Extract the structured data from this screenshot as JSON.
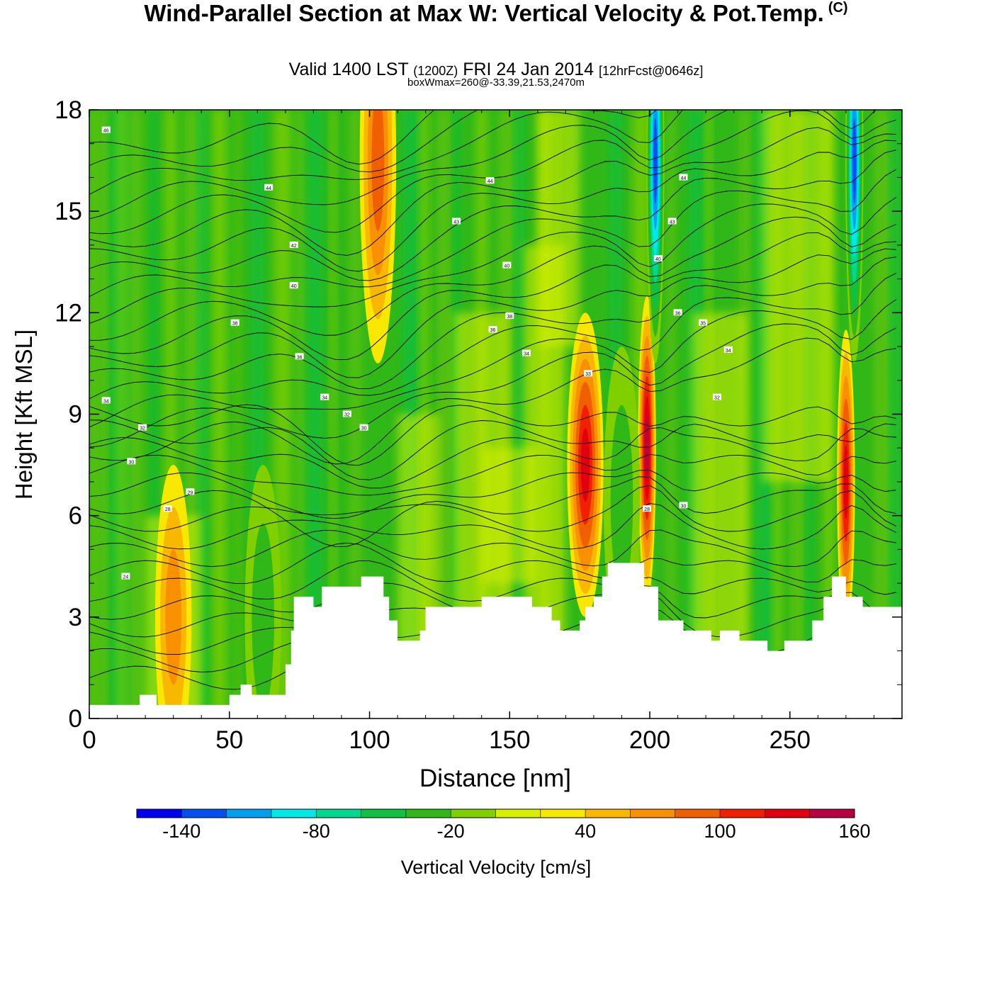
{
  "title": {
    "main": "Wind-Parallel Section at Max W: Vertical Velocity & Pot.Temp.",
    "mark": "(C)",
    "valid": "Valid 1400 LST",
    "zulu": "(1200Z)",
    "date": "FRI 24 Jan 2014",
    "fcst": "[12hrFcst@0646z]",
    "box": "boxWmax=260@-33.39,21.53,2470m"
  },
  "chart_data": {
    "type": "heatmap",
    "xlabel": "Distance [nm]",
    "ylabel": "Height [Kft MSL]",
    "xlim": [
      0,
      290
    ],
    "ylim": [
      0,
      18
    ],
    "xticks": [
      "0",
      "50",
      "100",
      "150",
      "200",
      "250"
    ],
    "yticks": [
      "0",
      "3",
      "6",
      "9",
      "12",
      "15",
      "18"
    ],
    "colorbar": {
      "label": "Vertical Velocity [cm/s]",
      "tick_labels": [
        "-140",
        "-80",
        "-20",
        "40",
        "100",
        "160"
      ],
      "colors": [
        "#0000f0",
        "#0050f0",
        "#00a0f0",
        "#00e8e8",
        "#00d890",
        "#10c040",
        "#30b818",
        "#80d000",
        "#d8f000",
        "#f8e800",
        "#f8b800",
        "#f89000",
        "#f06000",
        "#f02000",
        "#e00010",
        "#b80040"
      ]
    },
    "terrain_profile": [
      [
        0,
        0.4
      ],
      [
        18,
        0.4
      ],
      [
        18,
        0.7
      ],
      [
        24,
        0.7
      ],
      [
        24,
        0.4
      ],
      [
        50,
        0.4
      ],
      [
        50,
        0.7
      ],
      [
        54,
        0.7
      ],
      [
        54,
        1.0
      ],
      [
        58,
        1.0
      ],
      [
        58,
        0.7
      ],
      [
        70,
        0.7
      ],
      [
        70,
        1.6
      ],
      [
        72,
        1.6
      ],
      [
        72,
        2.6
      ],
      [
        73,
        2.6
      ],
      [
        73,
        3.6
      ],
      [
        80,
        3.6
      ],
      [
        80,
        3.3
      ],
      [
        83,
        3.3
      ],
      [
        83,
        3.9
      ],
      [
        97,
        3.9
      ],
      [
        97,
        4.2
      ],
      [
        105,
        4.2
      ],
      [
        105,
        3.6
      ],
      [
        107,
        3.6
      ],
      [
        107,
        2.9
      ],
      [
        110,
        2.9
      ],
      [
        110,
        2.3
      ],
      [
        118,
        2.3
      ],
      [
        118,
        2.6
      ],
      [
        120,
        2.6
      ],
      [
        120,
        3.3
      ],
      [
        140,
        3.3
      ],
      [
        140,
        3.6
      ],
      [
        158,
        3.6
      ],
      [
        158,
        3.3
      ],
      [
        165,
        3.3
      ],
      [
        165,
        2.9
      ],
      [
        168,
        2.9
      ],
      [
        168,
        2.6
      ],
      [
        175,
        2.6
      ],
      [
        175,
        2.9
      ],
      [
        177,
        2.9
      ],
      [
        177,
        3.3
      ],
      [
        180,
        3.3
      ],
      [
        180,
        3.6
      ],
      [
        183,
        3.6
      ],
      [
        183,
        4.2
      ],
      [
        185,
        4.2
      ],
      [
        185,
        4.6
      ],
      [
        198,
        4.6
      ],
      [
        198,
        3.9
      ],
      [
        203,
        3.9
      ],
      [
        203,
        2.9
      ],
      [
        212,
        2.9
      ],
      [
        212,
        2.6
      ],
      [
        222,
        2.6
      ],
      [
        222,
        2.3
      ],
      [
        225,
        2.3
      ],
      [
        225,
        2.6
      ],
      [
        232,
        2.6
      ],
      [
        232,
        2.3
      ],
      [
        242,
        2.3
      ],
      [
        242,
        2.0
      ],
      [
        248,
        2.0
      ],
      [
        248,
        2.3
      ],
      [
        258,
        2.3
      ],
      [
        258,
        2.9
      ],
      [
        262,
        2.9
      ],
      [
        262,
        3.6
      ],
      [
        265,
        3.6
      ],
      [
        265,
        4.2
      ],
      [
        270,
        4.2
      ],
      [
        270,
        3.6
      ],
      [
        276,
        3.6
      ],
      [
        276,
        3.3
      ],
      [
        290,
        3.3
      ]
    ],
    "updraft_cores": [
      {
        "x": 103,
        "z": 16.5,
        "w": 80
      },
      {
        "x": 177,
        "z": 7.5,
        "w": 110
      },
      {
        "x": 199,
        "z": 8.0,
        "w": 140
      },
      {
        "x": 270,
        "z": 7.0,
        "w": 110
      },
      {
        "x": 30,
        "z": 3.0,
        "w": 50
      }
    ],
    "downdraft_cores": [
      {
        "x": 202,
        "z": 16.5,
        "w": -140
      },
      {
        "x": 273,
        "z": 16.5,
        "w": -140
      },
      {
        "x": 62,
        "z": 3.0,
        "w": -40
      },
      {
        "x": 190,
        "z": 6.5,
        "w": -40
      }
    ],
    "contour_labels": [
      {
        "x": 6,
        "z": 17.4,
        "t": "46"
      },
      {
        "x": 64,
        "z": 15.7,
        "t": "44"
      },
      {
        "x": 143,
        "z": 15.9,
        "t": "44"
      },
      {
        "x": 212,
        "z": 16.0,
        "t": "44"
      },
      {
        "x": 131,
        "z": 14.7,
        "t": "43"
      },
      {
        "x": 208,
        "z": 14.7,
        "t": "43"
      },
      {
        "x": 73,
        "z": 14.0,
        "t": "42"
      },
      {
        "x": 149,
        "z": 13.4,
        "t": "40"
      },
      {
        "x": 73,
        "z": 12.8,
        "t": "40"
      },
      {
        "x": 203,
        "z": 13.6,
        "t": "40"
      },
      {
        "x": 52,
        "z": 11.7,
        "t": "38"
      },
      {
        "x": 150,
        "z": 11.9,
        "t": "38"
      },
      {
        "x": 144,
        "z": 11.5,
        "t": "36"
      },
      {
        "x": 210,
        "z": 12.0,
        "t": "36"
      },
      {
        "x": 219,
        "z": 11.7,
        "t": "35"
      },
      {
        "x": 75,
        "z": 10.7,
        "t": "36"
      },
      {
        "x": 156,
        "z": 10.8,
        "t": "34"
      },
      {
        "x": 228,
        "z": 10.9,
        "t": "34"
      },
      {
        "x": 178,
        "z": 10.2,
        "t": "33"
      },
      {
        "x": 224,
        "z": 9.5,
        "t": "32"
      },
      {
        "x": 6,
        "z": 9.4,
        "t": "34"
      },
      {
        "x": 84,
        "z": 9.5,
        "t": "34"
      },
      {
        "x": 92,
        "z": 9.0,
        "t": "32"
      },
      {
        "x": 19,
        "z": 8.6,
        "t": "32"
      },
      {
        "x": 98,
        "z": 8.6,
        "t": "30"
      },
      {
        "x": 15,
        "z": 7.6,
        "t": "30"
      },
      {
        "x": 36,
        "z": 6.7,
        "t": "29"
      },
      {
        "x": 28,
        "z": 6.2,
        "t": "28"
      },
      {
        "x": 13,
        "z": 4.2,
        "t": "24"
      },
      {
        "x": 199,
        "z": 6.2,
        "t": "28"
      },
      {
        "x": 212,
        "z": 6.3,
        "t": "30"
      }
    ]
  }
}
